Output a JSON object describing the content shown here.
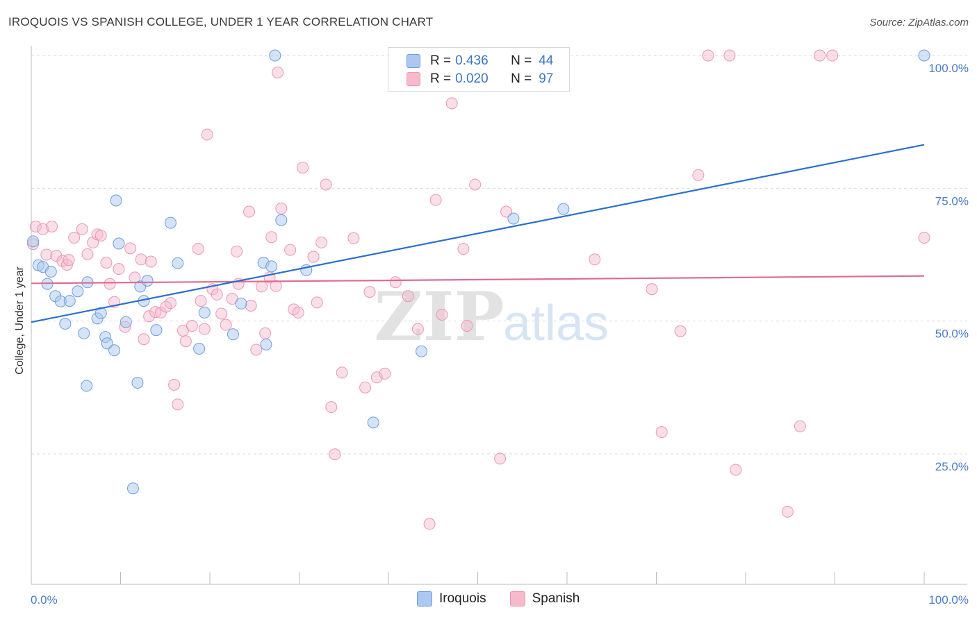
{
  "title": "IROQUOIS VS SPANISH COLLEGE, UNDER 1 YEAR CORRELATION CHART",
  "source": "Source: ZipAtlas.com",
  "watermark": {
    "zip": "ZIP",
    "atlas": "atlas"
  },
  "legend": {
    "rows": [
      {
        "r_label": "R =",
        "r_value": "0.436",
        "n_label": "N =",
        "n_value": "44"
      },
      {
        "r_label": "R =",
        "r_value": "0.020",
        "n_label": "N =",
        "n_value": "97"
      }
    ]
  },
  "bottom_legend": {
    "iroquois": "Iroquois",
    "spanish": "Spanish"
  },
  "colors": {
    "iroquois_fill": "#aac8f0",
    "iroquois_stroke": "#6d9ee0",
    "iroquois_line": "#2a6fcf",
    "spanish_fill": "#f7b9cc",
    "spanish_stroke": "#ee95b2",
    "spanish_line": "#e06c93",
    "tick_text": "#4a7cc7",
    "grid": "#d9d9d9"
  },
  "chart_data": {
    "type": "scatter",
    "title": "IROQUOIS VS SPANISH COLLEGE, UNDER 1 YEAR CORRELATION CHART",
    "xlabel": "",
    "ylabel": "College, Under 1 year",
    "xlim": [
      0,
      100
    ],
    "ylim": [
      2,
      103
    ],
    "y_ticks": [
      25,
      50,
      75,
      100
    ],
    "y_tick_labels": [
      "25.0%",
      "50.0%",
      "75.0%",
      "100.0%"
    ],
    "x_tick_labels": [
      "0.0%",
      "100.0%"
    ],
    "grid": "horizontal dashed",
    "legend_position": "top-center",
    "series": [
      {
        "name": "Iroquois",
        "r": 0.436,
        "n": 44,
        "trend": {
          "x": [
            0,
            100
          ],
          "y": [
            49.8,
            83.2
          ]
        },
        "points": [
          [
            0.2,
            65
          ],
          [
            0.8,
            60.5
          ],
          [
            1.3,
            60.2
          ],
          [
            1.8,
            57
          ],
          [
            2.2,
            59.3
          ],
          [
            2.7,
            54.7
          ],
          [
            3.3,
            53.7
          ],
          [
            3.8,
            49.5
          ],
          [
            4.3,
            53.8
          ],
          [
            5.2,
            55.6
          ],
          [
            5.9,
            47.7
          ],
          [
            6.3,
            57.3
          ],
          [
            6.2,
            37.8
          ],
          [
            7.4,
            50.5
          ],
          [
            7.8,
            51.5
          ],
          [
            8.3,
            47
          ],
          [
            8.5,
            45.8
          ],
          [
            9.3,
            44.5
          ],
          [
            9.8,
            64.6
          ],
          [
            10.6,
            49.8
          ],
          [
            11.4,
            18.5
          ],
          [
            11.9,
            38.4
          ],
          [
            12.2,
            56.5
          ],
          [
            12.6,
            53.8
          ],
          [
            13.0,
            57.6
          ],
          [
            14.0,
            48.3
          ],
          [
            15.6,
            68.5
          ],
          [
            16.4,
            60.9
          ],
          [
            18.8,
            44.8
          ],
          [
            19.4,
            51.6
          ],
          [
            22.6,
            47.5
          ],
          [
            23.5,
            53.3
          ],
          [
            26.0,
            61
          ],
          [
            26.9,
            60.3
          ],
          [
            26.3,
            45.6
          ],
          [
            27.3,
            100
          ],
          [
            28.0,
            69
          ],
          [
            30.8,
            59.6
          ],
          [
            43.7,
            44.3
          ],
          [
            38.3,
            30.9
          ],
          [
            54.0,
            69.3
          ],
          [
            59.6,
            71.1
          ],
          [
            100,
            100
          ],
          [
            9.5,
            72.7
          ]
        ]
      },
      {
        "name": "Spanish",
        "r": 0.02,
        "n": 97,
        "trend": {
          "x": [
            0,
            100
          ],
          "y": [
            57.1,
            58.5
          ]
        },
        "points": [
          [
            0.2,
            64.5
          ],
          [
            0.5,
            67.8
          ],
          [
            1.3,
            67.3
          ],
          [
            2.3,
            67.8
          ],
          [
            1.7,
            62.5
          ],
          [
            2.8,
            62.3
          ],
          [
            3.5,
            61.3
          ],
          [
            4.0,
            60.6
          ],
          [
            4.2,
            61.5
          ],
          [
            4.8,
            65.7
          ],
          [
            5.7,
            67.3
          ],
          [
            6.3,
            62.6
          ],
          [
            6.9,
            64.8
          ],
          [
            7.4,
            66.3
          ],
          [
            7.8,
            66.1
          ],
          [
            8.4,
            61
          ],
          [
            8.8,
            57
          ],
          [
            9.3,
            53.6
          ],
          [
            9.8,
            59.8
          ],
          [
            10.5,
            48.9
          ],
          [
            11.1,
            63.7
          ],
          [
            11.6,
            58.2
          ],
          [
            12.3,
            61.6
          ],
          [
            12.6,
            46.6
          ],
          [
            13.2,
            50.9
          ],
          [
            13.4,
            61.2
          ],
          [
            13.9,
            51.7
          ],
          [
            14.5,
            51.6
          ],
          [
            15.1,
            52.7
          ],
          [
            15.6,
            53.4
          ],
          [
            16.0,
            38
          ],
          [
            16.4,
            34.3
          ],
          [
            17.0,
            48.2
          ],
          [
            17.3,
            46.2
          ],
          [
            18.0,
            49.1
          ],
          [
            18.7,
            63.6
          ],
          [
            19.0,
            53.8
          ],
          [
            19.4,
            48.5
          ],
          [
            19.7,
            85.1
          ],
          [
            20.3,
            56
          ],
          [
            20.8,
            55
          ],
          [
            21.3,
            51.4
          ],
          [
            21.8,
            49.3
          ],
          [
            22.5,
            54.2
          ],
          [
            23.0,
            63.1
          ],
          [
            23.2,
            57
          ],
          [
            24.4,
            70.6
          ],
          [
            24.6,
            52.9
          ],
          [
            25.2,
            44.6
          ],
          [
            25.8,
            56.5
          ],
          [
            26.2,
            47.7
          ],
          [
            26.7,
            58.2
          ],
          [
            26.9,
            65.8
          ],
          [
            27.4,
            56.6
          ],
          [
            27.6,
            96.8
          ],
          [
            28.0,
            71.2
          ],
          [
            29.0,
            63.4
          ],
          [
            29.4,
            52.2
          ],
          [
            29.9,
            51.6
          ],
          [
            30.4,
            78.9
          ],
          [
            31.6,
            62.1
          ],
          [
            32.0,
            53.5
          ],
          [
            32.5,
            64.8
          ],
          [
            33.0,
            75.7
          ],
          [
            33.6,
            33.8
          ],
          [
            34.0,
            24.9
          ],
          [
            34.8,
            40.3
          ],
          [
            36.1,
            65.6
          ],
          [
            37.4,
            37.5
          ],
          [
            37.9,
            55.5
          ],
          [
            38.7,
            39.4
          ],
          [
            39.6,
            40.1
          ],
          [
            40.8,
            57.3
          ],
          [
            42.2,
            54.7
          ],
          [
            43.3,
            48.5
          ],
          [
            44.6,
            11.8
          ],
          [
            45.3,
            72.8
          ],
          [
            46.0,
            51.2
          ],
          [
            47.1,
            91
          ],
          [
            48.4,
            63.6
          ],
          [
            48.8,
            49.1
          ],
          [
            49.7,
            75.7
          ],
          [
            52.5,
            24.1
          ],
          [
            53.2,
            70.6
          ],
          [
            63.1,
            61.6
          ],
          [
            69.5,
            56
          ],
          [
            70.6,
            29.1
          ],
          [
            72.7,
            48.1
          ],
          [
            74.7,
            77.5
          ],
          [
            75.8,
            100
          ],
          [
            78.2,
            100
          ],
          [
            78.9,
            22
          ],
          [
            84.7,
            14.1
          ],
          [
            86.1,
            30.2
          ],
          [
            88.3,
            100
          ],
          [
            89.7,
            100
          ],
          [
            100,
            65.7
          ]
        ]
      }
    ]
  }
}
